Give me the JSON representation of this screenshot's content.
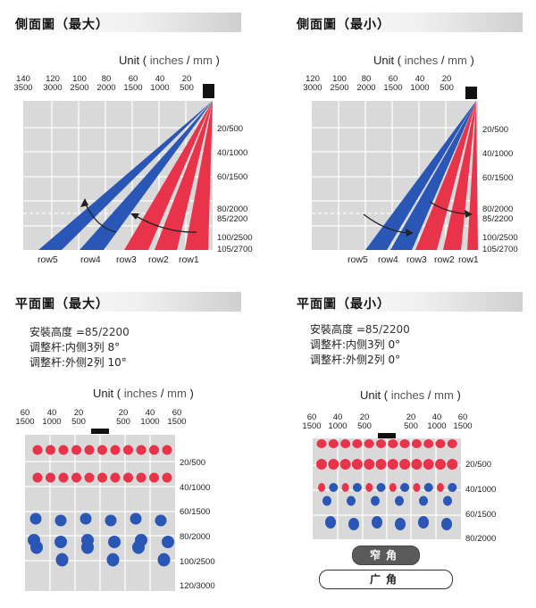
{
  "side_max": {
    "title": "側面圖（最大）"
  },
  "side_min": {
    "title": "側面圖（最小）"
  },
  "plan_max": {
    "title": "平面圖（最大）"
  },
  "plan_min": {
    "title": "平面圖（最小）"
  },
  "unit": {
    "prefix": "Unit (",
    "inches": "inches",
    "slash": "/",
    "mm": "mm",
    "suffix": ")"
  },
  "side_max_xticks": [
    {
      "in": "140",
      "mm": "3500"
    },
    {
      "in": "120",
      "mm": "3000"
    },
    {
      "in": "100",
      "mm": "2500"
    },
    {
      "in": "80",
      "mm": "2000"
    },
    {
      "in": "60",
      "mm": "1500"
    },
    {
      "in": "40",
      "mm": "1000"
    },
    {
      "in": "20",
      "mm": "500"
    }
  ],
  "side_min_xticks": [
    {
      "in": "120",
      "mm": "3000"
    },
    {
      "in": "100",
      "mm": "2500"
    },
    {
      "in": "80",
      "mm": "2000"
    },
    {
      "in": "60",
      "mm": "1500"
    },
    {
      "in": "40",
      "mm": "1000"
    },
    {
      "in": "20",
      "mm": "500"
    }
  ],
  "side_yticks": [
    "20/500",
    "40/1000",
    "60/1500",
    "80/2000",
    "85/2200",
    "100/2500",
    "105/2700"
  ],
  "rows": [
    "row5",
    "row4",
    "row3",
    "row2",
    "row1"
  ],
  "plan_max_info": {
    "height_label": "安裝高度  =",
    "height_value": "85/2200",
    "inner": "调整杆:内侧3列  8°",
    "outer": "调整杆:外侧2列  10°"
  },
  "plan_min_info": {
    "height_label": "安裝高度  =",
    "height_value": "85/2200",
    "inner": "调整杆:内侧3列  0°",
    "outer": "调整杆:外侧2列  0°"
  },
  "plan_max_xticks": [
    {
      "in": "60",
      "mm": "1500"
    },
    {
      "in": "40",
      "mm": "1000"
    },
    {
      "in": "20",
      "mm": "500"
    },
    {
      "in": "20",
      "mm": "500"
    },
    {
      "in": "40",
      "mm": "1000"
    },
    {
      "in": "60",
      "mm": "1500"
    }
  ],
  "plan_min_xticks": [
    {
      "in": "60",
      "mm": "1500"
    },
    {
      "in": "40",
      "mm": "1000"
    },
    {
      "in": "20",
      "mm": "500"
    },
    {
      "in": "20",
      "mm": "500"
    },
    {
      "in": "40",
      "mm": "1000"
    },
    {
      "in": "60",
      "mm": "1500"
    }
  ],
  "plan_max_yticks": [
    "20/500",
    "40/1000",
    "60/1500",
    "80/2000",
    "100/2500",
    "120/3000"
  ],
  "plan_min_yticks": [
    "20/500",
    "40/1000",
    "60/1500",
    "80/2000"
  ],
  "buttons": {
    "narrow": "窄角",
    "wide": "广角"
  },
  "colors": {
    "red": "#e8334a",
    "blue": "#2a56b5",
    "grid_bg": "#d9d9d9",
    "grid_line": "#ffffff",
    "sensor": "#111111"
  }
}
